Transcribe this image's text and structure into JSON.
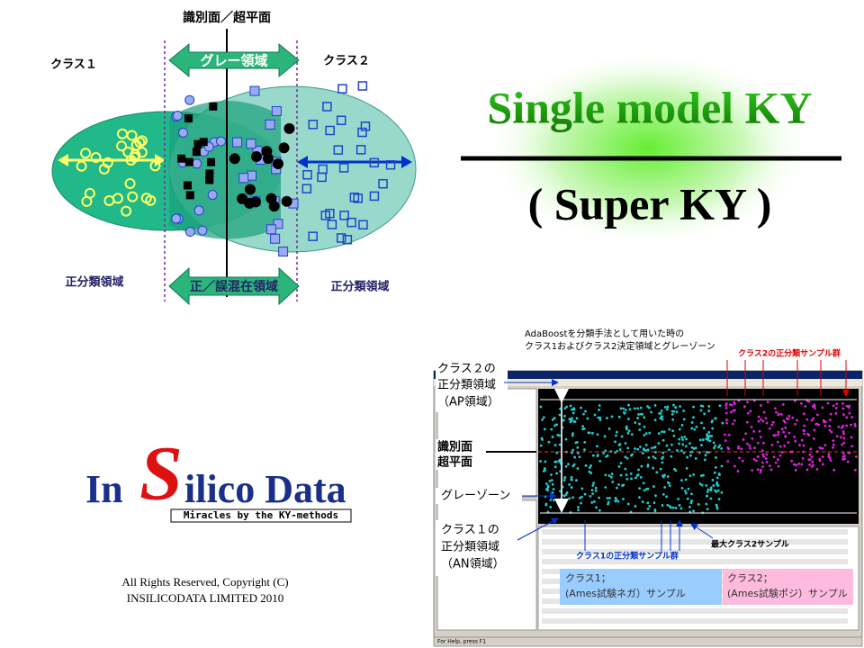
{
  "diagram": {
    "boundary_label": "識別面／超平面",
    "class1": "クラス１",
    "class2": "クラス２",
    "gray_region": "グレー領域",
    "left_region": "正分類領域",
    "mixed_region": "正／誤混在領域",
    "right_region": "正分類領域"
  },
  "title": {
    "main": "Single model KY",
    "sub": "( Super KY )"
  },
  "logo": {
    "in": "In",
    "s": "S",
    "rest": "ilico Data",
    "tagline": "Miracles by the KY-methods"
  },
  "copyright": {
    "line1": "All Rights Reserved, Copyright (C)",
    "line2": "INSILICODATA LIMITED 2010"
  },
  "screenshot": {
    "caption1": "AdaBoostを分類手法として用いた時の",
    "caption2": "クラス1およびクラス2決定領域とグレーゾーン",
    "class2_samples": "クラス2の正分類サンプル群",
    "ap1": "クラス２の",
    "ap2": "正分類領域",
    "ap3": "（AP領域）",
    "plane1": "識別面",
    "plane2": "超平面",
    "grayzone": "グレーゾーン",
    "an1": "クラス１の",
    "an2": "正分類領域",
    "an3": "（AN領域）",
    "class1_samples": "クラス1の正分類サンプル群",
    "max_class2": "最大クラス2サンプル",
    "box1a": "クラス1；",
    "box1b": "(Ames試験ネガ）サンプル",
    "box2a": "クラス2；",
    "box2b": "(Ames試験ポジ）サンプル",
    "status": "For Help, press F1"
  }
}
